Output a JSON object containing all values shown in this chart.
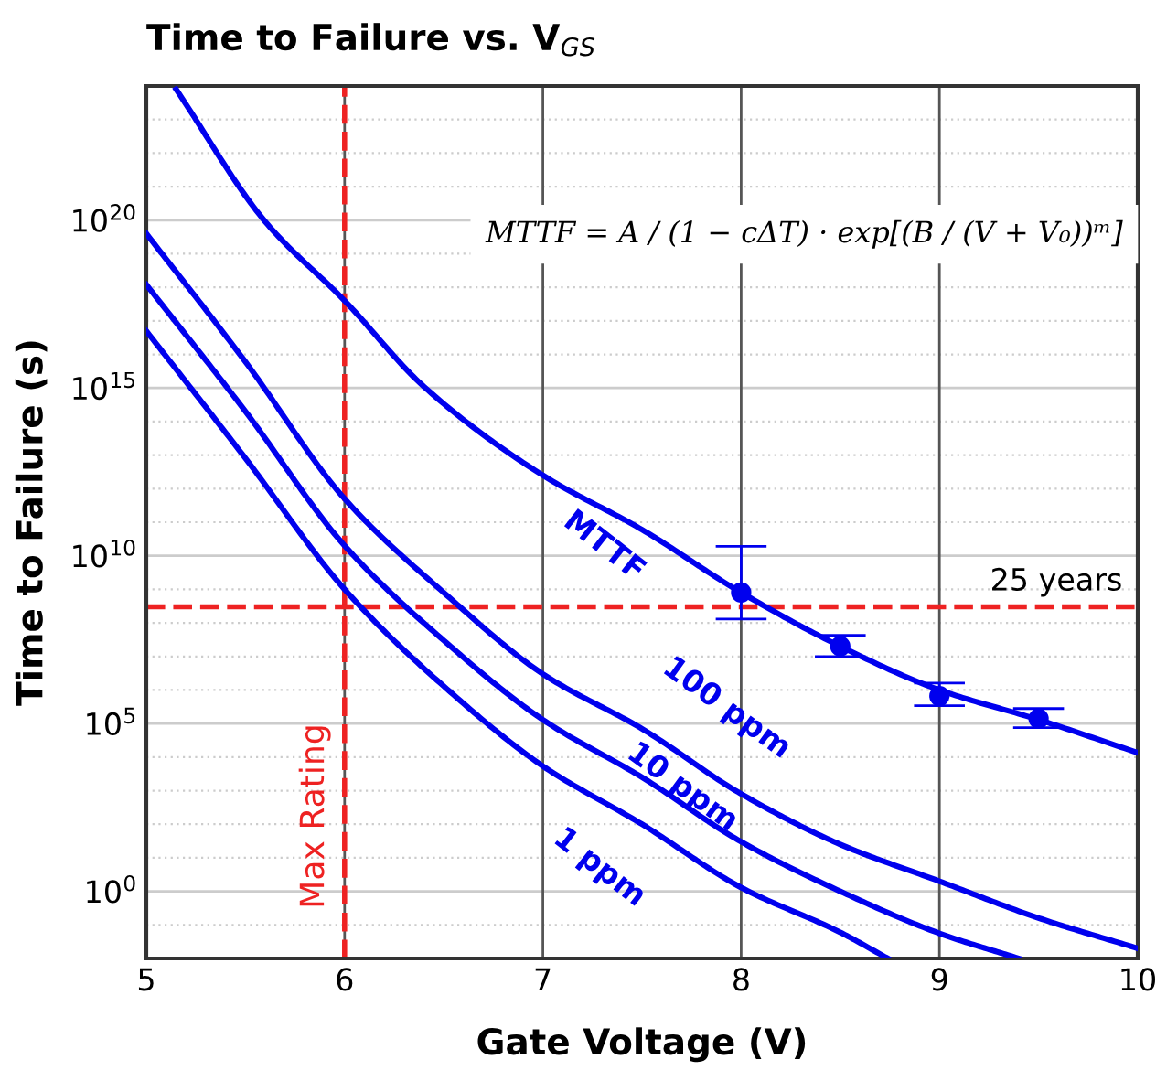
{
  "chart_data": {
    "type": "line",
    "title": "Time to Failure vs. V$_{GS}$",
    "xlabel": "Gate Voltage (V)",
    "ylabel": "Time to Failure (s)",
    "log": "y",
    "xlim": [
      5,
      10
    ],
    "ylim": [
      0.01,
      1e+24
    ],
    "xticks": [
      5,
      6,
      7,
      8,
      9,
      10
    ],
    "yticks": [
      {
        "value": 0.1,
        "label": null
      },
      {
        "value": 1,
        "label": "10$^{0}$"
      },
      {
        "value": 10.0,
        "label": null
      },
      {
        "value": 100.0,
        "label": null
      },
      {
        "value": 1000.0,
        "label": null
      },
      {
        "value": 10000.0,
        "label": null
      },
      {
        "value": 100000.0,
        "label": "10$^{5}$"
      },
      {
        "value": 1000000.0,
        "label": null
      },
      {
        "value": 10000000.0,
        "label": null
      },
      {
        "value": 100000000.0,
        "label": null
      },
      {
        "value": 1000000000.0,
        "label": null
      },
      {
        "value": 10000000000.0,
        "label": "10$^{10}$"
      },
      {
        "value": 100000000000.0,
        "label": null
      },
      {
        "value": 1000000000000.0,
        "label": null
      },
      {
        "value": 10000000000000.0,
        "label": null
      },
      {
        "value": 100000000000000.0,
        "label": null
      },
      {
        "value": 1000000000000000.0,
        "label": "10$^{15}$"
      },
      {
        "value": 1e+16,
        "label": null
      },
      {
        "value": 1e+17,
        "label": null
      },
      {
        "value": 1e+18,
        "label": null
      },
      {
        "value": 1e+19,
        "label": null
      },
      {
        "value": 1e+20,
        "label": "10$^{20}$"
      },
      {
        "value": 1e+21,
        "label": null
      },
      {
        "value": 1e+22,
        "label": null
      },
      {
        "value": 1e+23,
        "label": null
      }
    ],
    "grid": true,
    "line_style": "solid",
    "series": [
      {
        "name": "MTTF",
        "color": "#0000ee",
        "marker": "none",
        "x": [
          5.15,
          5.6,
          6,
          6.4,
          7,
          7.5,
          8,
          8.5,
          9,
          9.5,
          10
        ],
        "values": [
          8e+23,
          9e+19,
          4e+17,
          1100000000000000.0,
          2500000000000.0,
          60000000000.0,
          800000000.0,
          20000000.0,
          1000000.0,
          130000.0,
          13500.0
        ]
      },
      {
        "name": "100 ppm",
        "color": "#0000ee",
        "marker": "none",
        "x": [
          5,
          5.5,
          6,
          6.5,
          7,
          7.5,
          8,
          8.5,
          9,
          9.5,
          10
        ],
        "values": [
          4e+19,
          6000000000000000.0,
          500000000000.0,
          800000000.0,
          3000000.0,
          70000.0,
          800.0,
          25.0,
          2,
          0.16,
          0.02
        ]
      },
      {
        "name": "10 ppm",
        "color": "#0000ee",
        "marker": "none",
        "x": [
          5,
          5.5,
          6,
          6.5,
          7,
          7.5,
          8,
          8.5,
          9,
          9.4
        ],
        "values": [
          1.2e+18,
          200000000000000.0,
          20000000000.0,
          30000000.0,
          130000.0,
          2500.0,
          30.0,
          1,
          0.056,
          0.01
        ]
      },
      {
        "name": "1 ppm",
        "color": "#0000ee",
        "marker": "none",
        "x": [
          5,
          5.5,
          6,
          6.5,
          7,
          7.5,
          8,
          8.5,
          8.74
        ],
        "values": [
          5e+16,
          8000000000000.0,
          1000000000.0,
          1300000.0,
          5400.0,
          100.0,
          1.3,
          0.06,
          0.01
        ]
      },
      {
        "color": "#0000ee",
        "type": "scatter",
        "marker": "circle",
        "x": [
          8,
          8.5,
          9,
          9.5
        ],
        "values": [
          800000000.0,
          20000000.0,
          660000.0,
          140000.0
        ],
        "errors": [
          [
            130000000.0,
            19000000000.0
          ],
          [
            10000000.0,
            43000000.0
          ],
          [
            340000.0,
            1600000.0
          ],
          [
            76000.0,
            280000.0
          ]
        ]
      }
    ],
    "ref_lines": [
      {
        "axis": "x",
        "value": 6,
        "label": "Max Rating",
        "color": "#ee2222",
        "line_style": "dashed"
      },
      {
        "axis": "y",
        "value": 300000000.0,
        "label": "25 years",
        "color": "#ee2222",
        "line_style": "dashed"
      }
    ],
    "annotations": [
      "MTTF = A / (1 − cΔT) · exp[(B / (V + V₀))ᵐ]"
    ]
  }
}
